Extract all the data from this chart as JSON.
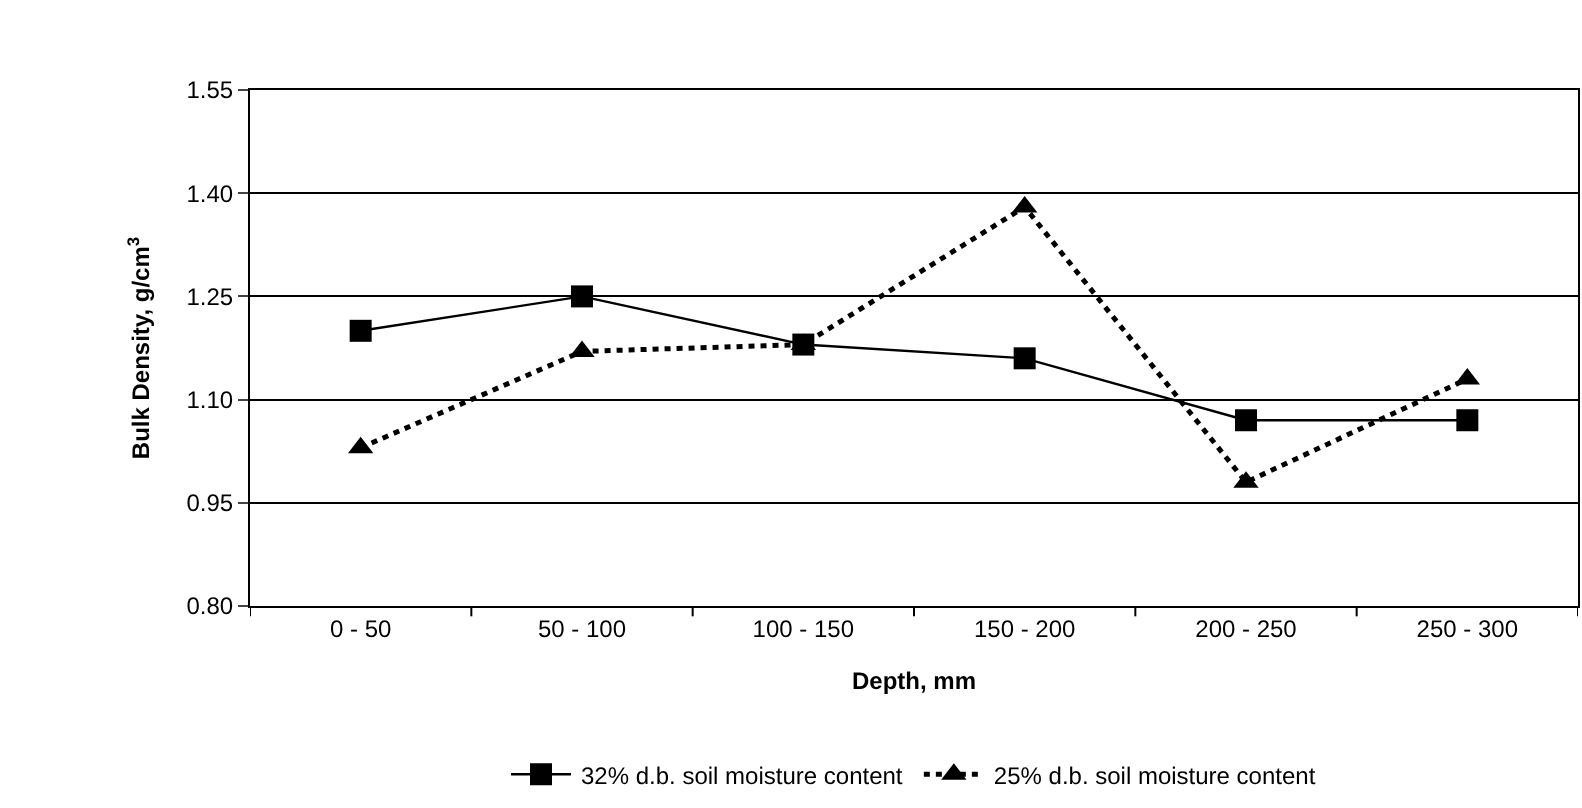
{
  "chart_data": {
    "type": "line",
    "xlabel": "Depth, mm",
    "ylabel": "Bulk Density, g/cm$^{3}$",
    "categories": [
      "0 - 50",
      "50 - 100",
      "100 - 150",
      "150 - 200",
      "200 - 250",
      "250 - 300"
    ],
    "series": [
      {
        "name": "32% d.b. soil moisture content",
        "color": "#000000",
        "marker": "square",
        "line_style": "solid",
        "values": [
          1.2,
          1.25,
          1.18,
          1.16,
          1.07,
          1.07
        ]
      },
      {
        "name": "25% d.b. soil moisture content",
        "color": "#000000",
        "marker": "triangle",
        "line_style": "dotted",
        "values": [
          1.03,
          1.17,
          1.18,
          1.38,
          0.98,
          1.13
        ]
      }
    ],
    "ylim": [
      0.8,
      1.55
    ],
    "yticks": [
      {
        "value": 0.8,
        "label": "0.80"
      },
      {
        "value": 0.95,
        "label": "0.95"
      },
      {
        "value": 1.1,
        "label": "1.10"
      },
      {
        "value": 1.25,
        "label": "1.25"
      },
      {
        "value": 1.4,
        "label": "1.40"
      },
      {
        "value": 1.55,
        "label": "1.55"
      }
    ],
    "grid": "y",
    "legend": "bottom"
  }
}
